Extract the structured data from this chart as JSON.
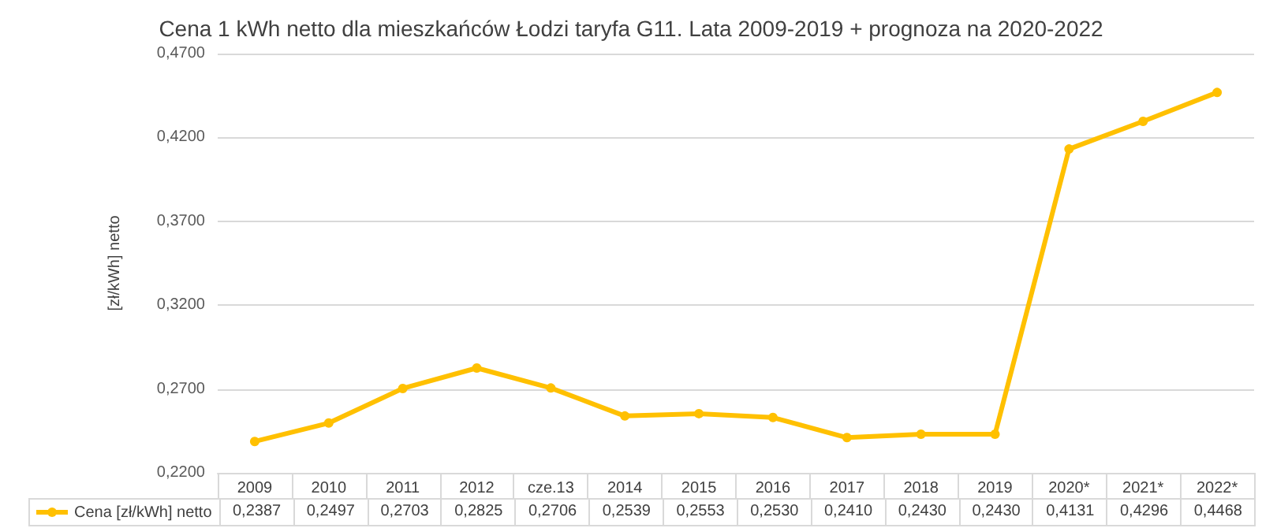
{
  "chart_data": {
    "type": "line",
    "title": "Cena 1 kWh netto dla mieszkańców Łodzi taryfa G11. Lata 2009-2019 + prognoza na 2020-2022",
    "ylabel": "[zł/kWh] netto",
    "categories": [
      "2009",
      "2010",
      "2011",
      "2012",
      "cze.13",
      "2014",
      "2015",
      "2016",
      "2017",
      "2018",
      "2019",
      "2020*",
      "2021*",
      "2022*"
    ],
    "series": [
      {
        "name": "Cena [zł/kWh] netto",
        "color": "#ffc000",
        "values": [
          0.2387,
          0.2497,
          0.2703,
          0.2825,
          0.2706,
          0.2539,
          0.2553,
          0.253,
          0.241,
          0.243,
          0.243,
          0.4131,
          0.4296,
          0.4468
        ],
        "value_labels": [
          "0,2387",
          "0,2497",
          "0,2703",
          "0,2825",
          "0,2706",
          "0,2539",
          "0,2553",
          "0,2530",
          "0,2410",
          "0,2430",
          "0,2430",
          "0,4131",
          "0,4296",
          "0,4468"
        ]
      }
    ],
    "ylim": [
      0.22,
      0.47
    ],
    "yticks": [
      {
        "value": 0.22,
        "label": "0,2200"
      },
      {
        "value": 0.27,
        "label": "0,2700"
      },
      {
        "value": 0.32,
        "label": "0,3200"
      },
      {
        "value": 0.37,
        "label": "0,3700"
      },
      {
        "value": 0.42,
        "label": "0,4200"
      },
      {
        "value": 0.47,
        "label": "0,4700"
      }
    ],
    "grid": "y",
    "legend": "bottom left",
    "marker": "circle",
    "line_style": "solid"
  }
}
